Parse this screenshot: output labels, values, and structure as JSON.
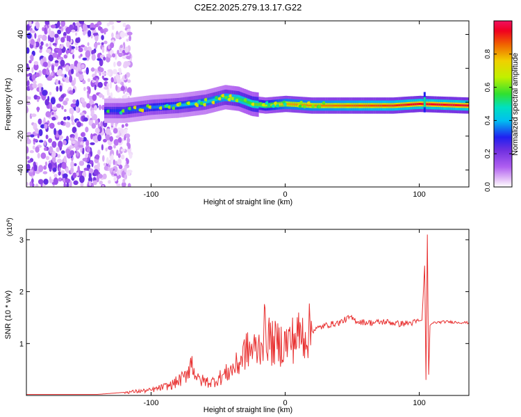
{
  "title": "C2E2.2025.279.13.17.G22",
  "chart_data": [
    {
      "type": "heatmap",
      "xlabel": "Height of straight line (km)",
      "ylabel": "Frequency (Hz)",
      "xlim": [
        -193,
        137
      ],
      "ylim": [
        -50,
        48
      ],
      "xticks": [
        -100,
        0,
        100
      ],
      "yticks": [
        -40,
        -20,
        0,
        20,
        40
      ],
      "colorbar": {
        "label": "Normalized spectral amplitude",
        "range": [
          0,
          1
        ],
        "ticks": [
          "0.0",
          "0.2",
          "0.4",
          "0.6",
          "0.8"
        ],
        "tick_values": [
          0.0,
          0.2,
          0.4,
          0.6,
          0.8
        ]
      },
      "ridge_center": {
        "x": [
          -135,
          -120,
          -100,
          -80,
          -60,
          -45,
          -35,
          -25,
          -15,
          0,
          20,
          50,
          80,
          100,
          137
        ],
        "y": [
          -5,
          -5,
          -3,
          -2,
          0,
          3,
          2,
          -1,
          -2,
          -1,
          -2,
          -2,
          -2,
          -1,
          -2
        ]
      },
      "ridge_amplitude": {
        "x": [
          -135,
          -100,
          -50,
          -20,
          0,
          40,
          80,
          100,
          137
        ],
        "y": [
          0.3,
          0.35,
          0.45,
          0.6,
          0.8,
          0.85,
          0.9,
          0.95,
          0.95
        ]
      },
      "noise_region": {
        "x_range": [
          -193,
          -125
        ],
        "amplitude": "low"
      }
    },
    {
      "type": "line",
      "xlabel": "Height of straight line (km)",
      "ylabel": "SNR (10 * v/v)",
      "ylabel_exponent": "(x10",
      "ylabel_exponent_power": "4",
      "ylabel_exponent_close": ")",
      "xlim": [
        -193,
        137
      ],
      "ylim": [
        0,
        3.2
      ],
      "xticks": [
        -100,
        0,
        100
      ],
      "yticks": [
        1,
        2,
        3
      ],
      "series": [
        {
          "name": "SNR",
          "color": "#e83030",
          "x": [
            -193,
            -140,
            -120,
            -100,
            -85,
            -75,
            -70,
            -65,
            -55,
            -45,
            -35,
            -30,
            -20,
            -15,
            -10,
            0,
            10,
            20,
            30,
            40,
            48,
            55,
            65,
            75,
            85,
            95,
            102,
            104,
            105,
            106,
            107,
            108,
            110,
            120,
            137
          ],
          "y": [
            0.02,
            0.02,
            0.06,
            0.1,
            0.2,
            0.35,
            0.65,
            0.3,
            0.25,
            0.4,
            0.6,
            0.85,
            0.9,
            1.25,
            1.0,
            1.0,
            1.15,
            1.25,
            1.35,
            1.4,
            1.5,
            1.42,
            1.4,
            1.42,
            1.38,
            1.4,
            1.45,
            2.5,
            0.3,
            3.1,
            0.4,
            1.35,
            1.4,
            1.42,
            1.4
          ]
        }
      ]
    }
  ]
}
